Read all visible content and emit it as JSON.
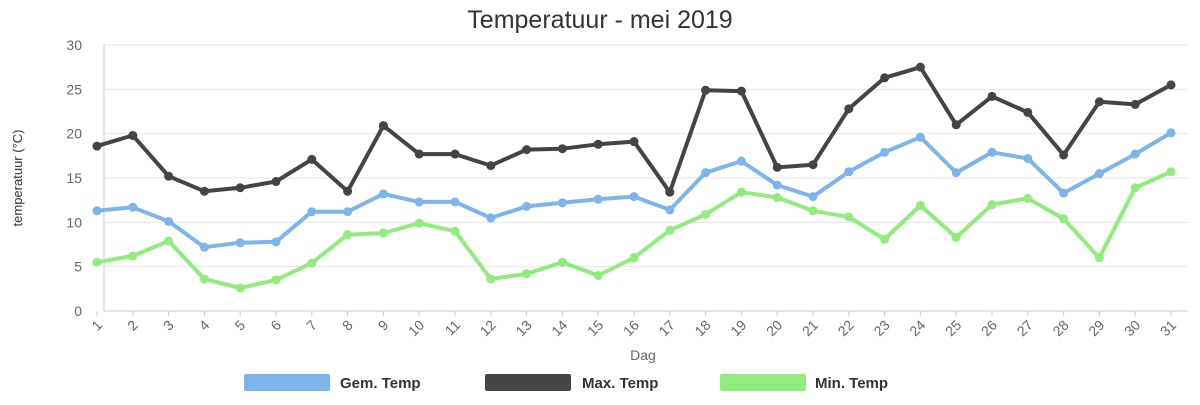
{
  "chart_data": {
    "type": "line",
    "title": "Temperatuur - mei 2019",
    "xlabel": "Dag",
    "ylabel": "temperatuur (°C)",
    "ylim": [
      0,
      30
    ],
    "yticks": [
      0,
      5,
      10,
      15,
      20,
      25,
      30
    ],
    "x": [
      1,
      2,
      3,
      4,
      5,
      6,
      7,
      8,
      9,
      10,
      11,
      12,
      13,
      14,
      15,
      16,
      17,
      18,
      19,
      20,
      21,
      22,
      23,
      24,
      25,
      26,
      27,
      28,
      29,
      30,
      31
    ],
    "grid": true,
    "legend_position": "bottom",
    "series": [
      {
        "name": "Gem. Temp",
        "color": "#7cb5ec",
        "values": [
          11.3,
          11.7,
          10.1,
          7.2,
          7.7,
          7.8,
          11.2,
          11.2,
          13.2,
          12.3,
          12.3,
          10.5,
          11.8,
          12.2,
          12.6,
          12.9,
          11.4,
          15.6,
          16.9,
          14.2,
          12.9,
          15.7,
          17.9,
          19.6,
          15.6,
          17.9,
          17.2,
          13.3,
          15.5,
          17.7,
          20.1
        ]
      },
      {
        "name": "Max. Temp",
        "color": "#434348",
        "values": [
          18.6,
          19.8,
          15.2,
          13.5,
          13.9,
          14.6,
          17.1,
          13.5,
          20.9,
          17.7,
          17.7,
          16.4,
          18.2,
          18.3,
          18.8,
          19.1,
          13.4,
          24.9,
          24.8,
          16.2,
          16.5,
          22.8,
          26.3,
          27.5,
          21.0,
          24.2,
          22.4,
          17.6,
          23.6,
          23.3,
          25.5
        ]
      },
      {
        "name": "Min. Temp",
        "color": "#90ed7d",
        "values": [
          5.5,
          6.2,
          7.9,
          3.6,
          2.6,
          3.5,
          5.4,
          8.6,
          8.8,
          9.9,
          9.0,
          3.6,
          4.2,
          5.5,
          4.0,
          6.0,
          9.1,
          10.9,
          13.4,
          12.8,
          11.3,
          10.6,
          8.1,
          11.9,
          8.3,
          12.0,
          12.7,
          10.4,
          6.0,
          13.9,
          15.7
        ]
      }
    ]
  }
}
